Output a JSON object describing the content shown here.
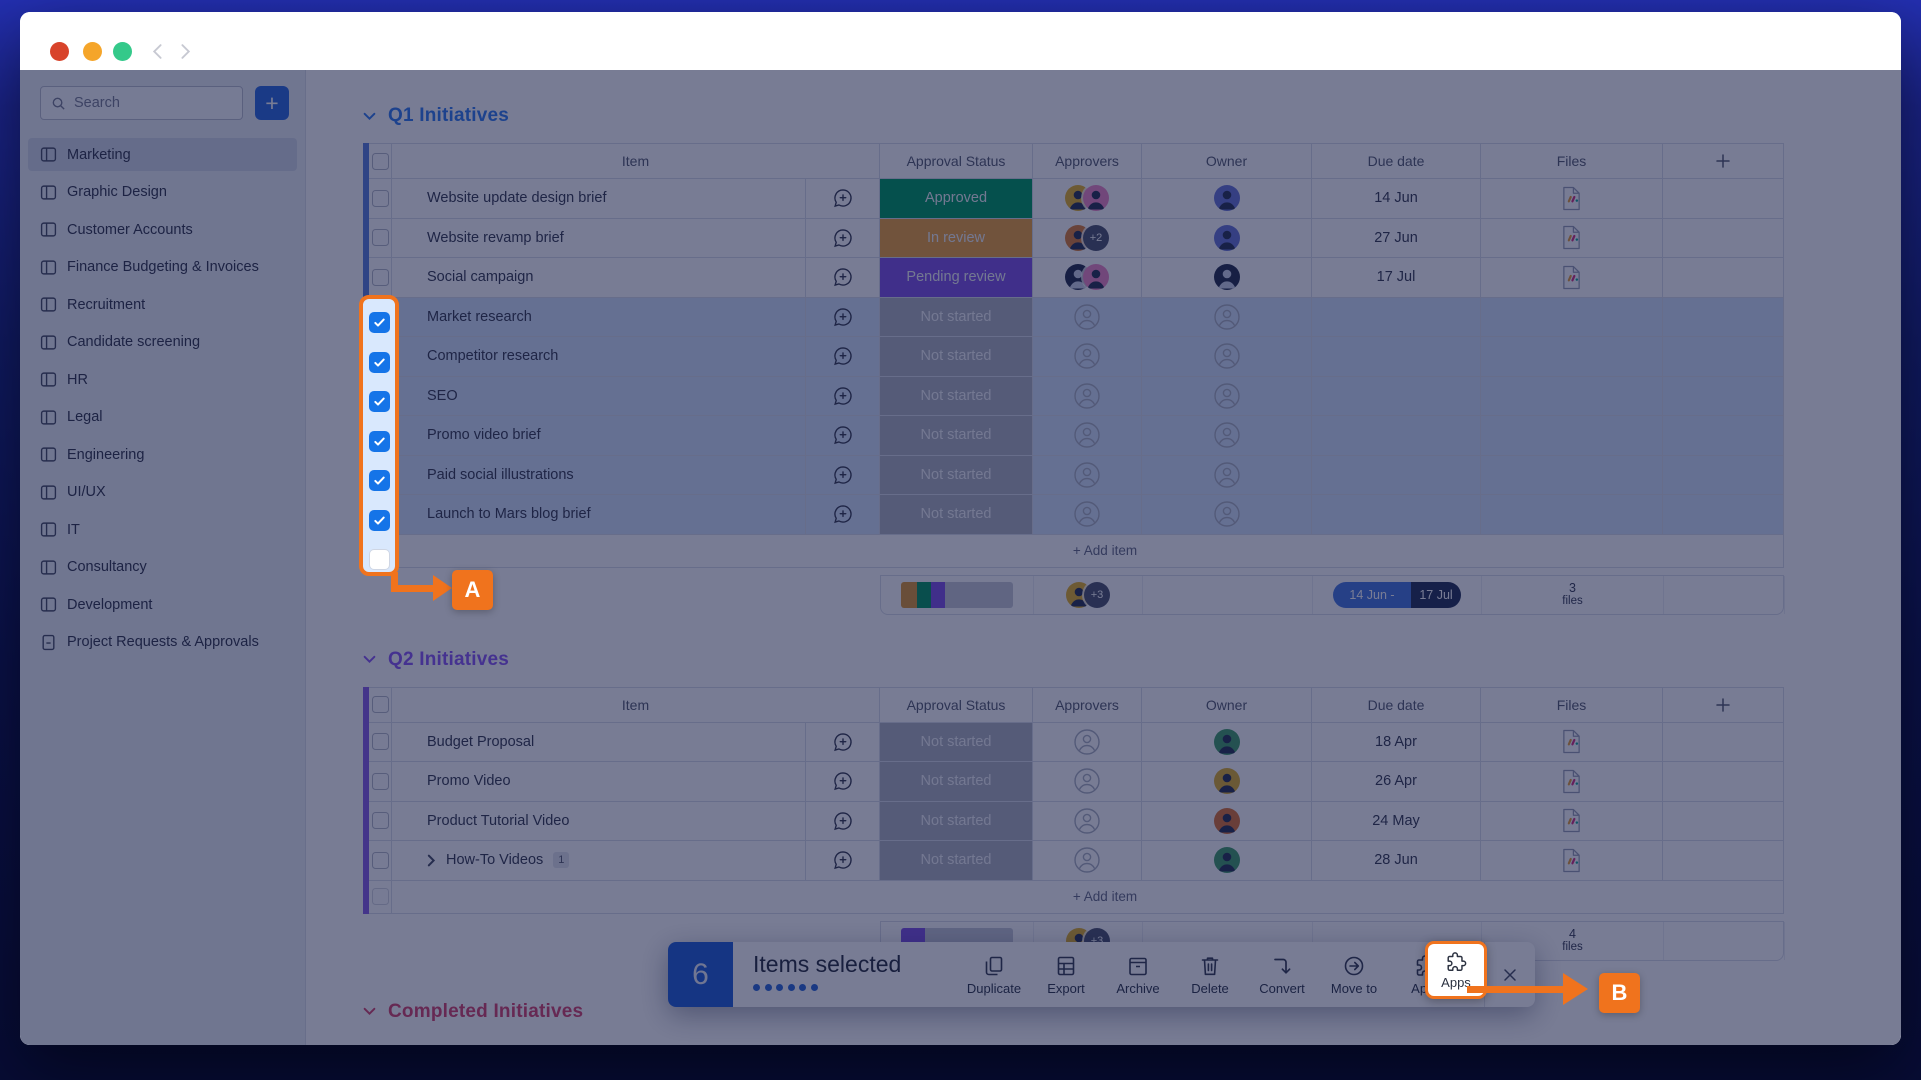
{
  "window": {
    "traffic_lights": [
      "#d8432a",
      "#f5a52a",
      "#34c98a"
    ]
  },
  "sidebar": {
    "search_placeholder": "Search",
    "add_button_label": "+",
    "items": [
      {
        "label": "Marketing",
        "icon": "board",
        "selected": true
      },
      {
        "label": "Graphic Design",
        "icon": "board"
      },
      {
        "label": "Customer Accounts",
        "icon": "board"
      },
      {
        "label": "Finance Budgeting & Invoices",
        "icon": "board"
      },
      {
        "label": "Recruitment",
        "icon": "board"
      },
      {
        "label": "Candidate screening",
        "icon": "board"
      },
      {
        "label": "HR",
        "icon": "board"
      },
      {
        "label": "Legal",
        "icon": "board"
      },
      {
        "label": "Engineering",
        "icon": "board"
      },
      {
        "label": "UI/UX",
        "icon": "board"
      },
      {
        "label": "IT",
        "icon": "board"
      },
      {
        "label": "Consultancy",
        "icon": "board"
      },
      {
        "label": "Development",
        "icon": "board"
      },
      {
        "label": "Project Requests & Approvals",
        "icon": "doc"
      }
    ]
  },
  "columns": [
    "Item",
    "Approval Status",
    "Approvers",
    "Owner",
    "Due date",
    "Files"
  ],
  "groups": [
    {
      "title": "Q1 Initiatives",
      "title_color": "#357ef0",
      "stripe_color": "#5d83dd",
      "add_item_label": "+ Add item",
      "rows": [
        {
          "name": "Website update design brief",
          "status": "Approved",
          "status_color": "#029e62",
          "approvers": [
            {
              "a": "#e6b42c"
            },
            {
              "a": "#f08ac6"
            }
          ],
          "owner": [
            {
              "a": "#6b78d8"
            }
          ],
          "due": "14 Jun",
          "file": true
        },
        {
          "name": "Website revamp brief",
          "status": "In review",
          "status_color": "#efa43c",
          "approvers": [
            {
              "a": "#dd8038"
            },
            {
              "b": "+2"
            }
          ],
          "owner": [
            {
              "a": "#6b78d8"
            }
          ],
          "due": "27 Jun",
          "file": true
        },
        {
          "name": "Social campaign",
          "status": "Pending review",
          "status_color": "#8356e8",
          "approvers": [
            {
              "a": "#28324f",
              "fg": "#cfd4e8"
            },
            {
              "a": "#f08ac6"
            }
          ],
          "owner": [
            {
              "a": "#28324f",
              "fg": "#cfd4e8"
            }
          ],
          "due": "17 Jul",
          "file": true
        },
        {
          "name": "Market research",
          "status": "Not started",
          "status_color": "#b2b5c2",
          "approvers": [
            {
              "g": 1
            }
          ],
          "owner": [
            {
              "g": 1
            }
          ],
          "selected": true
        },
        {
          "name": "Competitor research",
          "status": "Not started",
          "status_color": "#b2b5c2",
          "approvers": [
            {
              "g": 1
            }
          ],
          "owner": [
            {
              "g": 1
            }
          ],
          "selected": true
        },
        {
          "name": "SEO",
          "status": "Not started",
          "status_color": "#b2b5c2",
          "approvers": [
            {
              "g": 1
            }
          ],
          "owner": [
            {
              "g": 1
            }
          ],
          "selected": true
        },
        {
          "name": "Promo video brief",
          "status": "Not started",
          "status_color": "#b2b5c2",
          "approvers": [
            {
              "g": 1
            }
          ],
          "owner": [
            {
              "g": 1
            }
          ],
          "selected": true
        },
        {
          "name": "Paid social illustrations",
          "status": "Not started",
          "status_color": "#b2b5c2",
          "approvers": [
            {
              "g": 1
            }
          ],
          "owner": [
            {
              "g": 1
            }
          ],
          "selected": true
        },
        {
          "name": "Launch to Mars blog brief",
          "status": "Not started",
          "status_color": "#b2b5c2",
          "approvers": [
            {
              "g": 1
            }
          ],
          "owner": [
            {
              "g": 1
            }
          ],
          "selected": true
        }
      ],
      "summary": {
        "progress": [
          {
            "color": "#dd9a35",
            "pct": 14
          },
          {
            "color": "#0a9a62",
            "pct": 13
          },
          {
            "color": "#8356e8",
            "pct": 12
          },
          {
            "color": "#c9ccd8",
            "pct": 61
          }
        ],
        "approver": {
          "a": "#e6b42c"
        },
        "extra_badge": "+3",
        "due_range": {
          "start": "14 Jun -",
          "end": "17 Jul",
          "start_bg": "#4a7ae0",
          "end_bg": "#273459"
        },
        "files_count": "3",
        "files_label": "files"
      }
    },
    {
      "title": "Q2 Initiatives",
      "title_color": "#8e5cf5",
      "stripe_color": "#8d63e8",
      "add_item_label": "+ Add item",
      "top_margin": 32,
      "rows": [
        {
          "name": "Budget Proposal",
          "status": "Not started",
          "status_color": "#b2b5c2",
          "approvers": [
            {
              "g": 1
            }
          ],
          "owner": [
            {
              "a": "#45a06b"
            }
          ],
          "due": "18 Apr",
          "file": true
        },
        {
          "name": "Promo Video",
          "status": "Not started",
          "status_color": "#b2b5c2",
          "approvers": [
            {
              "g": 1
            }
          ],
          "owner": [
            {
              "a": "#e0b12f"
            }
          ],
          "due": "26 Apr",
          "file": true
        },
        {
          "name": "Product Tutorial Video",
          "status": "Not started",
          "status_color": "#b2b5c2",
          "approvers": [
            {
              "g": 1
            }
          ],
          "owner": [
            {
              "a": "#dd7535"
            }
          ],
          "due": "24 May",
          "file": true
        },
        {
          "name": "How-To Videos",
          "expand": true,
          "count_badge": "1",
          "status": "Not started",
          "status_color": "#b2b5c2",
          "approvers": [
            {
              "g": 1
            }
          ],
          "owner": [
            {
              "a": "#45a06b"
            }
          ],
          "due": "28 Jun",
          "file": true
        }
      ],
      "summary": {
        "progress": [
          {
            "color": "#8356e8",
            "pct": 21
          },
          {
            "color": "#c9ccd8",
            "pct": 79
          }
        ],
        "approver": {
          "a": "#e6b42c"
        },
        "extra_badge": "+3",
        "files_count": "4",
        "files_label": "files"
      }
    },
    {
      "title": "Completed Initiatives",
      "title_color": "#d8476f",
      "title_only": true,
      "top_margin": 38
    }
  ],
  "toolbar": {
    "count": "6",
    "label": "Items selected",
    "dots": 6,
    "accent": "#2463d9",
    "actions": [
      {
        "label": "Duplicate",
        "icon": "duplicate"
      },
      {
        "label": "Export",
        "icon": "export"
      },
      {
        "label": "Archive",
        "icon": "archive"
      },
      {
        "label": "Delete",
        "icon": "delete"
      },
      {
        "label": "Convert",
        "icon": "convert"
      },
      {
        "label": "Move to",
        "icon": "moveto"
      },
      {
        "label": "Apps",
        "icon": "apps"
      }
    ]
  },
  "annotations": {
    "color": "#f0731d",
    "a_label": "A",
    "b_label": "B",
    "apps_label": "Apps",
    "checked_count": 6,
    "unchecked_count": 1
  }
}
